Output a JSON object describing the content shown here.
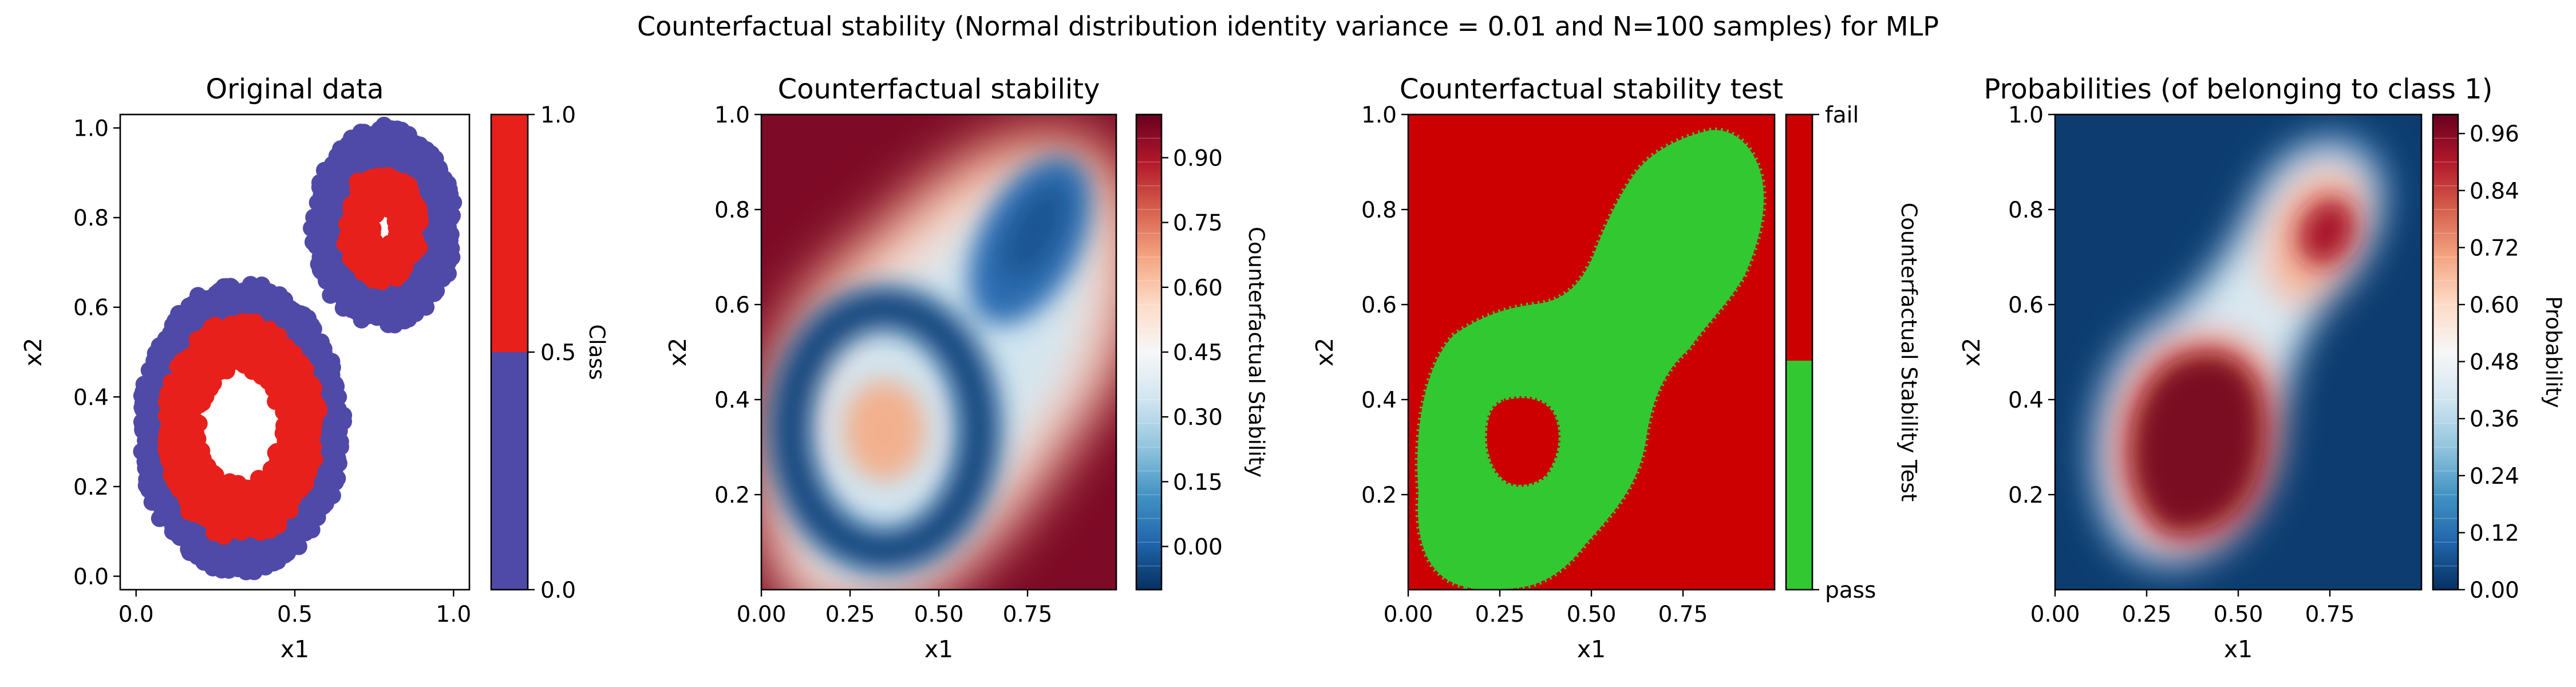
{
  "figure": {
    "title": "Counterfactual stability (Normal distribution identity variance = 0.01 and N=100 samples) for MLP"
  },
  "colors": {
    "class0": "#4f4aa8",
    "class1": "#e8201c",
    "pass": "#32c832",
    "fail": "#cc0000"
  },
  "chart_data": [
    {
      "id": "original-data",
      "type": "scatter",
      "title": "Original data",
      "xlabel": "x1",
      "ylabel": "x2",
      "xlim": [
        -0.05,
        1.05
      ],
      "ylim": [
        -0.03,
        1.03
      ],
      "xticks": [
        "0.0",
        "0.5",
        "1.0"
      ],
      "yticks": [
        "0.0",
        "0.2",
        "0.4",
        "0.6",
        "0.8",
        "1.0"
      ],
      "clusters": [
        {
          "class": 0,
          "center": [
            0.33,
            0.33
          ],
          "r_inner": 0.24,
          "r_outer": 0.32
        },
        {
          "class": 1,
          "center": [
            0.33,
            0.33
          ],
          "r_inner": 0.13,
          "r_outer": 0.24
        },
        {
          "class": 0,
          "center": [
            0.78,
            0.78
          ],
          "r_inner": 0.12,
          "r_outer": 0.22
        },
        {
          "class": 1,
          "center": [
            0.78,
            0.78
          ],
          "r_inner": 0.04,
          "r_outer": 0.12
        }
      ],
      "colorbar": {
        "label": "Class",
        "ticks": [
          "0.0",
          "0.5",
          "1.0"
        ],
        "values": [
          0,
          1
        ]
      }
    },
    {
      "id": "counterfactual-stability",
      "type": "heatmap",
      "title": "Counterfactual stability",
      "xlabel": "x1",
      "ylabel": "x2",
      "xlim": [
        0.0,
        1.0
      ],
      "ylim": [
        0.0,
        1.0
      ],
      "xticks": [
        "0.00",
        "0.25",
        "0.50",
        "0.75"
      ],
      "yticks": [
        "0.2",
        "0.4",
        "0.6",
        "0.8",
        "1.0"
      ],
      "colorbar": {
        "label": "Counterfactual Stability",
        "ticks": [
          "0.00",
          "0.15",
          "0.30",
          "0.45",
          "0.60",
          "0.75",
          "0.90"
        ],
        "range": [
          -0.1,
          1.0
        ],
        "colormap": "RdBu_r"
      }
    },
    {
      "id": "stability-test",
      "type": "heatmap",
      "title": "Counterfactual stability test",
      "xlabel": "x1",
      "ylabel": "x2",
      "xlim": [
        0.0,
        1.0
      ],
      "ylim": [
        0.0,
        1.0
      ],
      "xticks": [
        "0.00",
        "0.25",
        "0.50",
        "0.75"
      ],
      "yticks": [
        "0.2",
        "0.4",
        "0.6",
        "0.8",
        "1.0"
      ],
      "colorbar": {
        "label": "Counterfactual Stability Test",
        "ticks": [
          "pass",
          "fail"
        ]
      }
    },
    {
      "id": "probabilities",
      "type": "heatmap",
      "title": "Probabilities (of belonging to class 1)",
      "xlabel": "x1",
      "ylabel": "x2",
      "xlim": [
        0.0,
        1.0
      ],
      "ylim": [
        0.0,
        1.0
      ],
      "xticks": [
        "0.00",
        "0.25",
        "0.50",
        "0.75"
      ],
      "yticks": [
        "0.2",
        "0.4",
        "0.6",
        "0.8",
        "1.0"
      ],
      "colorbar": {
        "label": "Probability",
        "ticks": [
          "0.00",
          "0.12",
          "0.24",
          "0.36",
          "0.48",
          "0.60",
          "0.72",
          "0.84",
          "0.96"
        ],
        "range": [
          0.0,
          1.0
        ],
        "colormap": "RdBu_r"
      }
    }
  ]
}
